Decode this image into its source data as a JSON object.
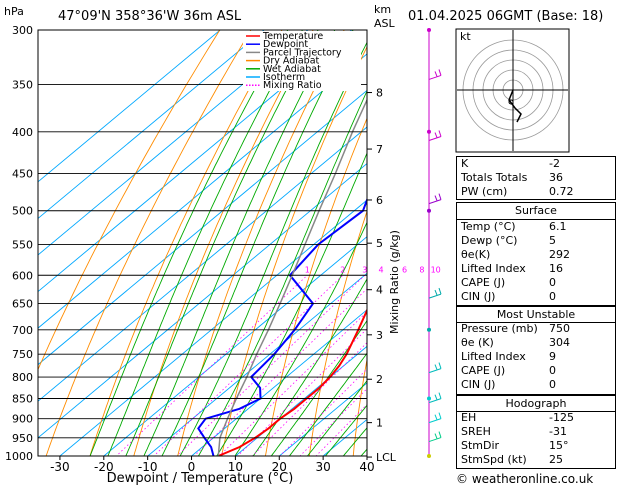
{
  "header": {
    "units": "hPa",
    "location": "47°09'N  358°36'W  36m  ASL",
    "km_label": "km",
    "asl_label": "ASL",
    "datetime": "01.04.2025  06GMT  (Base: 18)"
  },
  "chart_data": {
    "type": "line",
    "title": "",
    "xlabel": "Dewpoint / Temperature (°C)",
    "ylabel": "hPa",
    "right_axis_label": "Mixing Ratio (g/kg)",
    "xlim": [
      -35,
      40
    ],
    "ylim": [
      1000,
      300
    ],
    "pressure_levels": [
      300,
      350,
      400,
      450,
      500,
      550,
      600,
      650,
      700,
      750,
      800,
      850,
      900,
      950,
      1000
    ],
    "x_ticks": [
      -30,
      -20,
      -10,
      0,
      10,
      20,
      30,
      40
    ],
    "km_ticks": [
      {
        "label": "8",
        "p": 358
      },
      {
        "label": "7",
        "p": 420
      },
      {
        "label": "6",
        "p": 485
      },
      {
        "label": "5",
        "p": 548
      },
      {
        "label": "4",
        "p": 625
      },
      {
        "label": "3",
        "p": 710
      },
      {
        "label": "2",
        "p": 805
      },
      {
        "label": "1",
        "p": 910
      },
      {
        "label": "LCL",
        "p": 1003
      }
    ],
    "mixing_ratio_labels": [
      "1",
      "2",
      "3",
      "4",
      "6",
      "8",
      "10",
      "15",
      "20",
      "25"
    ],
    "legend": [
      "Temperature",
      "Dewpoint",
      "Parcel Trajectory",
      "Dry Adiabat",
      "Wet Adiabat",
      "Isotherm",
      "Mixing Ratio"
    ],
    "legend_colors": [
      "#ff0000",
      "#0000ff",
      "#888888",
      "#ff8800",
      "#00aa00",
      "#00aaff",
      "#ff00ff"
    ],
    "series": [
      {
        "name": "Temperature",
        "color": "#ff0000",
        "points": [
          {
            "p": 1000,
            "t": 6.1
          },
          {
            "p": 975,
            "t": 8.5
          },
          {
            "p": 950,
            "t": 9.5
          },
          {
            "p": 925,
            "t": 10
          },
          {
            "p": 900,
            "t": 10
          },
          {
            "p": 875,
            "t": 10.5
          },
          {
            "p": 850,
            "t": 10.5
          },
          {
            "p": 825,
            "t": 10.5
          },
          {
            "p": 800,
            "t": 10
          },
          {
            "p": 775,
            "t": 9
          },
          {
            "p": 750,
            "t": 7.5
          },
          {
            "p": 700,
            "t": 3.5
          },
          {
            "p": 650,
            "t": -1
          },
          {
            "p": 600,
            "t": -5
          },
          {
            "p": 550,
            "t": -9.5
          },
          {
            "p": 500,
            "t": -14.5
          },
          {
            "p": 450,
            "t": -20.5
          },
          {
            "p": 400,
            "t": -27.5
          },
          {
            "p": 350,
            "t": -34.5
          },
          {
            "p": 300,
            "t": -43
          }
        ]
      },
      {
        "name": "Dewpoint",
        "color": "#0000ff",
        "points": [
          {
            "p": 1000,
            "t": 5
          },
          {
            "p": 975,
            "t": 2
          },
          {
            "p": 950,
            "t": -2
          },
          {
            "p": 925,
            "t": -6
          },
          {
            "p": 900,
            "t": -7
          },
          {
            "p": 875,
            "t": -2
          },
          {
            "p": 850,
            "t": 0
          },
          {
            "p": 825,
            "t": -3
          },
          {
            "p": 800,
            "t": -8
          },
          {
            "p": 750,
            "t": -9
          },
          {
            "p": 700,
            "t": -11
          },
          {
            "p": 650,
            "t": -14
          },
          {
            "p": 600,
            "t": -27
          },
          {
            "p": 550,
            "t": -29
          },
          {
            "p": 500,
            "t": -28
          },
          {
            "p": 450,
            "t": -35
          },
          {
            "p": 400,
            "t": -42
          },
          {
            "p": 350,
            "t": -52
          },
          {
            "p": 300,
            "t": -58
          }
        ]
      },
      {
        "name": "Parcel Trajectory",
        "color": "#888888",
        "points": [
          {
            "p": 1000,
            "t": 6.1
          },
          {
            "p": 950,
            "t": 1.5
          },
          {
            "p": 900,
            "t": -2
          },
          {
            "p": 850,
            "t": -5.5
          },
          {
            "p": 800,
            "t": -9
          },
          {
            "p": 750,
            "t": -13
          },
          {
            "p": 700,
            "t": -17
          },
          {
            "p": 650,
            "t": -21.5
          },
          {
            "p": 600,
            "t": -26.5
          },
          {
            "p": 550,
            "t": -32
          },
          {
            "p": 500,
            "t": -38
          },
          {
            "p": 450,
            "t": -44.5
          },
          {
            "p": 400,
            "t": -52
          },
          {
            "p": 350,
            "t": -60
          },
          {
            "p": 300,
            "t": -69
          }
        ]
      }
    ]
  },
  "hodograph": {
    "label": "kt"
  },
  "indices": [
    {
      "k": "K",
      "v": "-2"
    },
    {
      "k": "Totals Totals",
      "v": "36"
    },
    {
      "k": "PW (cm)",
      "v": "0.72"
    }
  ],
  "surface": {
    "title": "Surface",
    "rows": [
      {
        "k": "Temp (°C)",
        "v": "6.1"
      },
      {
        "k": "Dewp (°C)",
        "v": "5"
      },
      {
        "k": "θe(K)",
        "v": "292"
      },
      {
        "k": "Lifted Index",
        "v": "16"
      },
      {
        "k": "CAPE (J)",
        "v": "0"
      },
      {
        "k": "CIN (J)",
        "v": "0"
      }
    ]
  },
  "most_unstable": {
    "title": "Most Unstable",
    "rows": [
      {
        "k": "Pressure (mb)",
        "v": "750"
      },
      {
        "k": "θe (K)",
        "v": "304"
      },
      {
        "k": "Lifted Index",
        "v": "9"
      },
      {
        "k": "CAPE (J)",
        "v": "0"
      },
      {
        "k": "CIN (J)",
        "v": "0"
      }
    ]
  },
  "hodo_table": {
    "title": "Hodograph",
    "rows": [
      {
        "k": "EH",
        "v": "-125"
      },
      {
        "k": "SREH",
        "v": "-31"
      },
      {
        "k": "StmDir",
        "v": "15°"
      },
      {
        "k": "StmSpd (kt)",
        "v": "25"
      }
    ]
  },
  "credit": "© weatheronline.co.uk"
}
